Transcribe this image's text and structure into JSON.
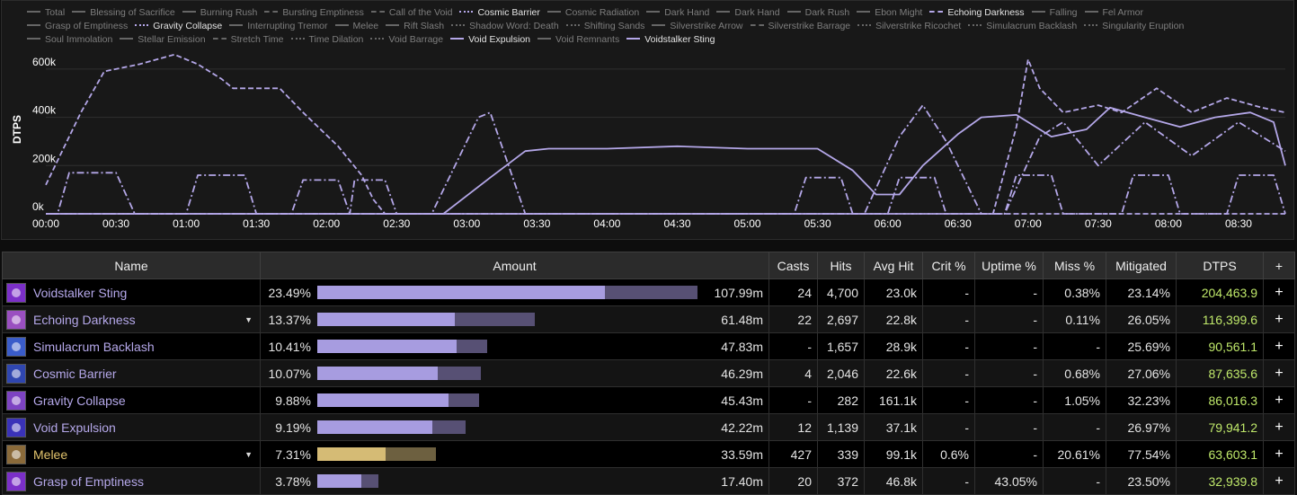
{
  "chart": {
    "y_axis_label": "DTPS",
    "y_ticks": [
      "600k",
      "400k",
      "200k",
      "0k"
    ],
    "x_ticks": [
      "00:00",
      "00:30",
      "01:00",
      "01:30",
      "02:00",
      "02:30",
      "03:00",
      "03:30",
      "04:00",
      "04:30",
      "05:00",
      "05:30",
      "06:00",
      "06:30",
      "07:00",
      "07:30",
      "08:00",
      "08:30"
    ],
    "legend": [
      {
        "label": "Total",
        "style": "solid",
        "active": false
      },
      {
        "label": "Blessing of Sacrifice",
        "style": "solid",
        "active": false
      },
      {
        "label": "Burning Rush",
        "style": "solid",
        "active": false
      },
      {
        "label": "Bursting Emptiness",
        "style": "longdash",
        "active": false
      },
      {
        "label": "Call of the Void",
        "style": "dashdot",
        "active": false
      },
      {
        "label": "Cosmic Barrier",
        "style": "dotdash",
        "active": true
      },
      {
        "label": "Cosmic Radiation",
        "style": "solid",
        "active": false
      },
      {
        "label": "Dark Hand",
        "style": "solid",
        "active": false
      },
      {
        "label": "Dark Hand",
        "style": "solid",
        "active": false
      },
      {
        "label": "Dark Rush",
        "style": "solid",
        "active": false
      },
      {
        "label": "Ebon Might",
        "style": "solid",
        "active": false
      },
      {
        "label": "Echoing Darkness",
        "style": "dash",
        "active": true
      },
      {
        "label": "Falling",
        "style": "solid",
        "active": false
      },
      {
        "label": "Fel Armor",
        "style": "solid",
        "active": false
      },
      {
        "label": "Grasp of Emptiness",
        "style": "solid",
        "active": false
      },
      {
        "label": "Gravity Collapse",
        "style": "dotdash",
        "active": true
      },
      {
        "label": "Interrupting Tremor",
        "style": "solid",
        "active": false
      },
      {
        "label": "Melee",
        "style": "solid",
        "active": false
      },
      {
        "label": "Rift Slash",
        "style": "solid",
        "active": false
      },
      {
        "label": "Shadow Word: Death",
        "style": "dot",
        "active": false
      },
      {
        "label": "Shifting Sands",
        "style": "dotdash",
        "active": false
      },
      {
        "label": "Silverstrike Arrow",
        "style": "solid",
        "active": false
      },
      {
        "label": "Silverstrike Barrage",
        "style": "dash",
        "active": false
      },
      {
        "label": "Silverstrike Ricochet",
        "style": "dot",
        "active": false
      },
      {
        "label": "Simulacrum Backlash",
        "style": "dot",
        "active": false
      },
      {
        "label": "Singularity Eruption",
        "style": "dotdash",
        "active": false
      },
      {
        "label": "Soul Immolation",
        "style": "solid",
        "active": false
      },
      {
        "label": "Stellar Emission",
        "style": "solid",
        "active": false
      },
      {
        "label": "Stretch Time",
        "style": "dashdot",
        "active": false
      },
      {
        "label": "Time Dilation",
        "style": "dotdash",
        "active": false
      },
      {
        "label": "Void Barrage",
        "style": "dotdash",
        "active": false
      },
      {
        "label": "Void Expulsion",
        "style": "solid",
        "active": true
      },
      {
        "label": "Void Remnants",
        "style": "solid",
        "active": false
      },
      {
        "label": "Voidstalker Sting",
        "style": "solid",
        "active": true
      }
    ]
  },
  "chart_data": {
    "type": "line",
    "ylabel": "DTPS",
    "ylim": [
      0,
      700000
    ],
    "xlim": [
      "00:00",
      "08:50"
    ],
    "grid": true,
    "series": [
      {
        "name": "Echoing Darkness",
        "style": "dash",
        "points": [
          [
            "00:00",
            120000
          ],
          [
            "00:15",
            420000
          ],
          [
            "00:25",
            590000
          ],
          [
            "00:40",
            620000
          ],
          [
            "00:55",
            660000
          ],
          [
            "01:05",
            620000
          ],
          [
            "01:15",
            560000
          ],
          [
            "01:20",
            520000
          ],
          [
            "01:40",
            520000
          ],
          [
            "01:50",
            420000
          ],
          [
            "02:05",
            280000
          ],
          [
            "02:15",
            160000
          ],
          [
            "02:20",
            60000
          ],
          [
            "02:25",
            0
          ],
          [
            "08:50",
            0
          ]
        ]
      },
      {
        "name": "Gravity Collapse",
        "style": "dotdash",
        "points": [
          [
            "00:00",
            0
          ],
          [
            "00:05",
            0
          ],
          [
            "00:10",
            170000
          ],
          [
            "00:30",
            170000
          ],
          [
            "00:38",
            0
          ],
          [
            "01:00",
            0
          ],
          [
            "01:05",
            160000
          ],
          [
            "01:25",
            160000
          ],
          [
            "01:30",
            0
          ],
          [
            "01:45",
            0
          ],
          [
            "01:50",
            140000
          ],
          [
            "02:05",
            140000
          ],
          [
            "02:10",
            0
          ],
          [
            "02:12",
            140000
          ],
          [
            "02:25",
            140000
          ],
          [
            "02:30",
            0
          ],
          [
            "05:20",
            0
          ],
          [
            "05:25",
            150000
          ],
          [
            "05:40",
            150000
          ],
          [
            "05:45",
            0
          ],
          [
            "06:00",
            0
          ],
          [
            "06:05",
            150000
          ],
          [
            "06:20",
            150000
          ],
          [
            "06:25",
            0
          ],
          [
            "06:50",
            0
          ],
          [
            "06:55",
            160000
          ],
          [
            "07:10",
            160000
          ],
          [
            "07:15",
            0
          ],
          [
            "07:40",
            0
          ],
          [
            "07:45",
            160000
          ],
          [
            "08:00",
            160000
          ],
          [
            "08:05",
            0
          ],
          [
            "08:25",
            0
          ],
          [
            "08:30",
            160000
          ],
          [
            "08:45",
            160000
          ],
          [
            "08:50",
            0
          ]
        ]
      },
      {
        "name": "Cosmic Barrier",
        "style": "dotdash",
        "points": [
          [
            "00:00",
            0
          ],
          [
            "02:45",
            0
          ],
          [
            "03:05",
            400000
          ],
          [
            "03:10",
            420000
          ],
          [
            "03:25",
            0
          ],
          [
            "05:50",
            0
          ],
          [
            "06:05",
            320000
          ],
          [
            "06:15",
            450000
          ],
          [
            "06:25",
            300000
          ],
          [
            "06:40",
            0
          ],
          [
            "06:50",
            0
          ],
          [
            "07:05",
            320000
          ],
          [
            "07:15",
            380000
          ],
          [
            "07:30",
            200000
          ],
          [
            "07:50",
            380000
          ],
          [
            "08:10",
            240000
          ],
          [
            "08:30",
            380000
          ],
          [
            "08:50",
            260000
          ]
        ]
      },
      {
        "name": "Void Expulsion",
        "style": "solid",
        "points": [
          [
            "00:00",
            0
          ],
          [
            "02:50",
            0
          ],
          [
            "03:10",
            150000
          ],
          [
            "03:25",
            260000
          ],
          [
            "03:35",
            270000
          ],
          [
            "04:00",
            270000
          ],
          [
            "04:30",
            280000
          ],
          [
            "05:00",
            270000
          ],
          [
            "05:30",
            270000
          ],
          [
            "05:45",
            180000
          ],
          [
            "05:55",
            80000
          ],
          [
            "06:05",
            80000
          ],
          [
            "06:15",
            200000
          ],
          [
            "06:30",
            330000
          ],
          [
            "06:40",
            400000
          ],
          [
            "06:55",
            410000
          ],
          [
            "07:10",
            320000
          ],
          [
            "07:25",
            350000
          ],
          [
            "07:35",
            440000
          ],
          [
            "07:50",
            400000
          ],
          [
            "08:05",
            360000
          ],
          [
            "08:20",
            400000
          ],
          [
            "08:35",
            420000
          ],
          [
            "08:45",
            380000
          ],
          [
            "08:50",
            200000
          ]
        ]
      },
      {
        "name": "Voidstalker Sting",
        "style": "dash",
        "points": [
          [
            "00:00",
            0
          ],
          [
            "06:45",
            0
          ],
          [
            "06:55",
            360000
          ],
          [
            "07:00",
            640000
          ],
          [
            "07:05",
            520000
          ],
          [
            "07:15",
            420000
          ],
          [
            "07:30",
            450000
          ],
          [
            "07:40",
            420000
          ],
          [
            "07:55",
            520000
          ],
          [
            "08:10",
            420000
          ],
          [
            "08:25",
            480000
          ],
          [
            "08:40",
            440000
          ],
          [
            "08:50",
            420000
          ]
        ]
      }
    ]
  },
  "table": {
    "headers": [
      "Name",
      "Amount",
      "Casts",
      "Hits",
      "Avg Hit",
      "Crit %",
      "Uptime %",
      "Miss %",
      "Mitigated",
      "DTPS",
      "+"
    ],
    "rows": [
      {
        "name": "Voidstalker Sting",
        "caret": "",
        "icon": "void-sting-icon",
        "color": "#7b2fc8",
        "pct": "23.49%",
        "bar": 0.7549,
        "total": 0.9987,
        "amount": "107.99m",
        "casts": "24",
        "hits": "4,700",
        "avg": "23.0k",
        "crit": "-",
        "uptime": "-",
        "miss": "0.38%",
        "mitigated": "23.14%",
        "dtps": "204,463.9",
        "plus": "+",
        "gold": false
      },
      {
        "name": "Echoing Darkness",
        "caret": "▼",
        "icon": "echoing-darkness-icon",
        "color": "#9a4fc0",
        "pct": "13.37%",
        "bar": 0.3608,
        "total": 0.5713,
        "amount": "61.48m",
        "casts": "22",
        "hits": "2,697",
        "avg": "22.8k",
        "crit": "-",
        "uptime": "-",
        "miss": "0.11%",
        "mitigated": "26.05%",
        "dtps": "116,399.6",
        "plus": "+",
        "gold": false
      },
      {
        "name": "Simulacrum Backlash",
        "caret": "",
        "icon": "simulacrum-backlash-icon",
        "color": "#3a5cc9",
        "pct": "10.41%",
        "bar": 0.3655,
        "total": 0.445,
        "amount": "47.83m",
        "casts": "-",
        "hits": "1,657",
        "avg": "28.9k",
        "crit": "-",
        "uptime": "-",
        "miss": "-",
        "mitigated": "25.69%",
        "dtps": "90,561.1",
        "plus": "+",
        "gold": false
      },
      {
        "name": "Cosmic Barrier",
        "caret": "",
        "icon": "cosmic-barrier-icon",
        "color": "#2f46b0",
        "pct": "10.07%",
        "bar": 0.3151,
        "total": 0.4287,
        "amount": "46.29m",
        "casts": "4",
        "hits": "2,046",
        "avg": "22.6k",
        "crit": "-",
        "uptime": "-",
        "miss": "0.68%",
        "mitigated": "27.06%",
        "dtps": "87,635.6",
        "plus": "+",
        "gold": false
      },
      {
        "name": "Gravity Collapse",
        "caret": "",
        "icon": "gravity-collapse-icon",
        "color": "#7d43c2",
        "pct": "9.88%",
        "bar": 0.3443,
        "total": 0.4239,
        "amount": "45.43m",
        "casts": "-",
        "hits": "282",
        "avg": "161.1k",
        "crit": "-",
        "uptime": "-",
        "miss": "1.05%",
        "mitigated": "32.23%",
        "dtps": "86,016.3",
        "plus": "+",
        "gold": false
      },
      {
        "name": "Void Expulsion",
        "caret": "",
        "icon": "void-expulsion-icon",
        "color": "#3a32b8",
        "pct": "9.19%",
        "bar": 0.3009,
        "total": 0.3892,
        "amount": "42.22m",
        "casts": "12",
        "hits": "1,139",
        "avg": "37.1k",
        "crit": "-",
        "uptime": "-",
        "miss": "-",
        "mitigated": "26.97%",
        "dtps": "79,941.2",
        "plus": "+",
        "gold": false
      },
      {
        "name": "Melee",
        "caret": "▼",
        "icon": "melee-icon",
        "color": "#8a6a3a",
        "pct": "7.31%",
        "bar": 0.1792,
        "total": 0.3113,
        "amount": "33.59m",
        "casts": "427",
        "hits": "339",
        "avg": "99.1k",
        "crit": "0.6%",
        "uptime": "-",
        "miss": "20.61%",
        "mitigated": "77.54%",
        "dtps": "63,603.1",
        "plus": "+",
        "gold": true
      },
      {
        "name": "Grasp of Emptiness",
        "caret": "",
        "icon": "grasp-of-emptiness-icon",
        "color": "#7b2fc8",
        "pct": "3.78%",
        "bar": 0.1148,
        "total": 0.1604,
        "amount": "17.40m",
        "casts": "20",
        "hits": "372",
        "avg": "46.8k",
        "crit": "-",
        "uptime": "43.05%",
        "miss": "-",
        "mitigated": "23.50%",
        "dtps": "32,939.8",
        "plus": "+",
        "gold": false
      }
    ]
  }
}
